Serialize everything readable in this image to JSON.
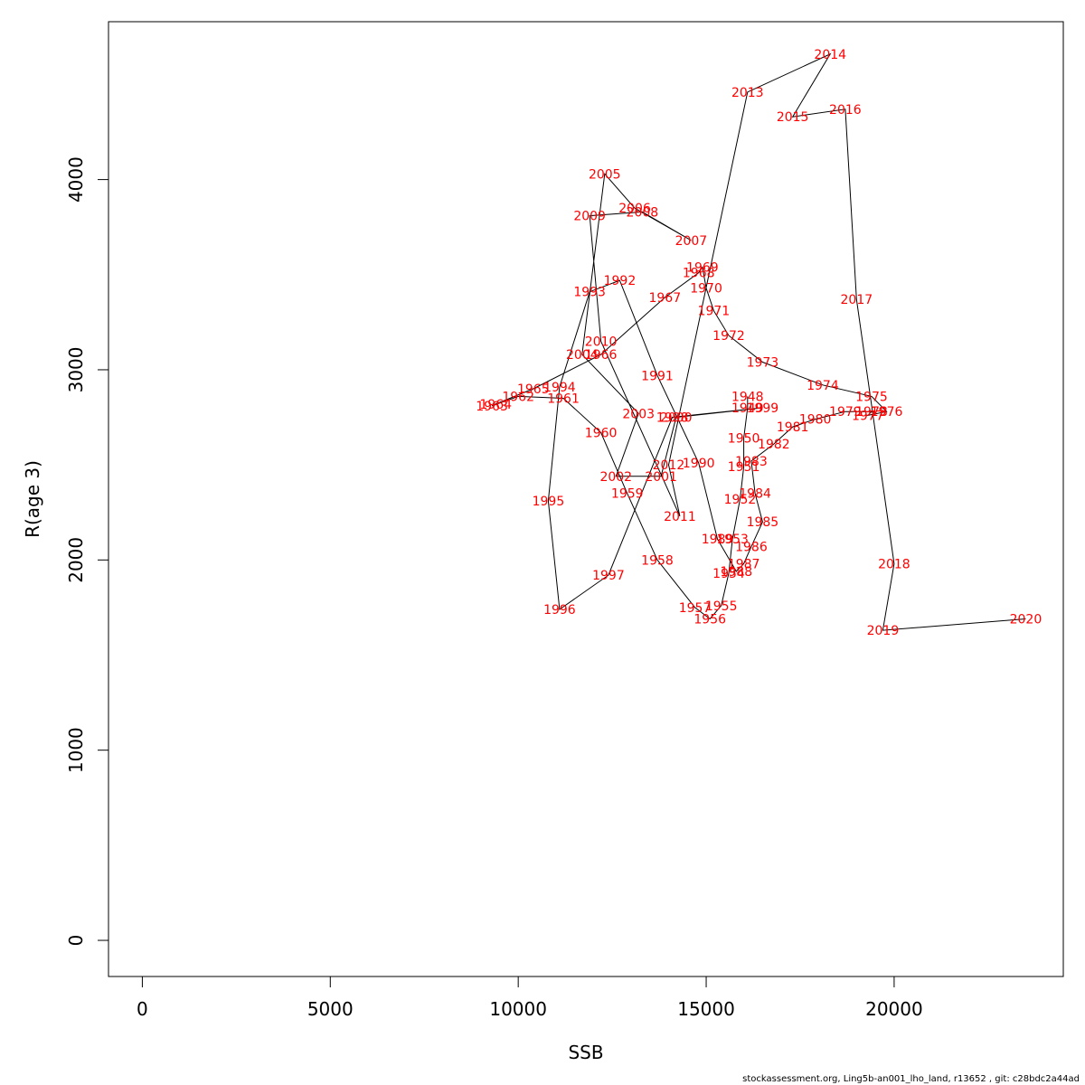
{
  "chart_data": {
    "type": "line",
    "xlabel": "SSB",
    "ylabel": "R(age 3)",
    "xlim": [
      -900,
      24500
    ],
    "ylim": [
      -190,
      4830
    ],
    "xticks": [
      0,
      5000,
      10000,
      15000,
      20000
    ],
    "yticks": [
      0,
      1000,
      2000,
      3000,
      4000
    ],
    "xtick_labels": [
      "0",
      "5000",
      "10000",
      "15000",
      "20000"
    ],
    "ytick_labels": [
      "0",
      "1000",
      "2000",
      "3000",
      "4000"
    ],
    "point_label_color": "#ff0000",
    "line_color": "#000000",
    "series": [
      {
        "points": [
          {
            "year": "1948",
            "x": 16100,
            "y": 2860
          },
          {
            "year": "1949",
            "x": 16100,
            "y": 2800
          },
          {
            "year": "1950",
            "x": 16000,
            "y": 2640
          },
          {
            "year": "1951",
            "x": 16000,
            "y": 2490
          },
          {
            "year": "1952",
            "x": 15900,
            "y": 2320
          },
          {
            "year": "1953",
            "x": 15700,
            "y": 2110
          },
          {
            "year": "1954",
            "x": 15600,
            "y": 1930
          },
          {
            "year": "1955",
            "x": 15400,
            "y": 1760
          },
          {
            "year": "1956",
            "x": 15100,
            "y": 1690
          },
          {
            "year": "1957",
            "x": 14700,
            "y": 1750
          },
          {
            "year": "1958",
            "x": 13700,
            "y": 2000
          },
          {
            "year": "1959",
            "x": 12900,
            "y": 2350
          },
          {
            "year": "1960",
            "x": 12200,
            "y": 2670
          },
          {
            "year": "1961",
            "x": 11200,
            "y": 2850
          },
          {
            "year": "1962",
            "x": 10000,
            "y": 2860
          },
          {
            "year": "1963",
            "x": 9300,
            "y": 2810
          },
          {
            "year": "1964",
            "x": 9400,
            "y": 2820
          },
          {
            "year": "1965",
            "x": 10400,
            "y": 2900
          },
          {
            "year": "1966",
            "x": 12200,
            "y": 3080
          },
          {
            "year": "1967",
            "x": 13900,
            "y": 3380
          },
          {
            "year": "1968",
            "x": 14800,
            "y": 3510
          },
          {
            "year": "1969",
            "x": 14900,
            "y": 3540
          },
          {
            "year": "1970",
            "x": 15000,
            "y": 3430
          },
          {
            "year": "1971",
            "x": 15200,
            "y": 3310
          },
          {
            "year": "1972",
            "x": 15600,
            "y": 3180
          },
          {
            "year": "1973",
            "x": 16500,
            "y": 3040
          },
          {
            "year": "1974",
            "x": 18100,
            "y": 2920
          },
          {
            "year": "1975",
            "x": 19400,
            "y": 2860
          },
          {
            "year": "1976",
            "x": 19800,
            "y": 2780
          },
          {
            "year": "1977",
            "x": 19300,
            "y": 2760
          },
          {
            "year": "1978",
            "x": 19400,
            "y": 2780
          },
          {
            "year": "1979",
            "x": 18700,
            "y": 2780
          },
          {
            "year": "1980",
            "x": 17900,
            "y": 2740
          },
          {
            "year": "1981",
            "x": 17300,
            "y": 2700
          },
          {
            "year": "1982",
            "x": 16800,
            "y": 2610
          },
          {
            "year": "1983",
            "x": 16200,
            "y": 2520
          },
          {
            "year": "1984",
            "x": 16300,
            "y": 2350
          },
          {
            "year": "1985",
            "x": 16500,
            "y": 2200
          },
          {
            "year": "1986",
            "x": 16200,
            "y": 2070
          },
          {
            "year": "1987",
            "x": 16000,
            "y": 1980
          },
          {
            "year": "1988",
            "x": 15800,
            "y": 1940
          },
          {
            "year": "1989",
            "x": 15300,
            "y": 2110
          },
          {
            "year": "1990",
            "x": 14800,
            "y": 2510
          },
          {
            "year": "1991",
            "x": 13700,
            "y": 2970
          },
          {
            "year": "1992",
            "x": 12700,
            "y": 3470
          },
          {
            "year": "1993",
            "x": 11900,
            "y": 3410
          },
          {
            "year": "1994",
            "x": 11100,
            "y": 2910
          },
          {
            "year": "1995",
            "x": 10800,
            "y": 2310
          },
          {
            "year": "1996",
            "x": 11100,
            "y": 1740
          },
          {
            "year": "1997",
            "x": 12400,
            "y": 1920
          },
          {
            "year": "1998",
            "x": 14100,
            "y": 2750
          },
          {
            "year": "1999",
            "x": 16500,
            "y": 2800
          },
          {
            "year": "2000",
            "x": 14200,
            "y": 2750
          },
          {
            "year": "2001",
            "x": 13800,
            "y": 2440
          },
          {
            "year": "2002",
            "x": 12600,
            "y": 2440
          },
          {
            "year": "2003",
            "x": 13200,
            "y": 2770
          },
          {
            "year": "2004",
            "x": 11700,
            "y": 3080
          },
          {
            "year": "2005",
            "x": 12300,
            "y": 4030
          },
          {
            "year": "2006",
            "x": 13100,
            "y": 3850
          },
          {
            "year": "2007",
            "x": 14600,
            "y": 3680
          },
          {
            "year": "2008",
            "x": 13300,
            "y": 3830
          },
          {
            "year": "2009",
            "x": 11900,
            "y": 3810
          },
          {
            "year": "2010",
            "x": 12200,
            "y": 3150
          },
          {
            "year": "2011",
            "x": 14300,
            "y": 2230
          },
          {
            "year": "2012",
            "x": 14000,
            "y": 2500
          },
          {
            "year": "2013",
            "x": 16100,
            "y": 4460
          },
          {
            "year": "2014",
            "x": 18300,
            "y": 4660
          },
          {
            "year": "2015",
            "x": 17300,
            "y": 4330
          },
          {
            "year": "2016",
            "x": 18700,
            "y": 4370
          },
          {
            "year": "2017",
            "x": 19000,
            "y": 3370
          },
          {
            "year": "2018",
            "x": 20000,
            "y": 1980
          },
          {
            "year": "2019",
            "x": 19700,
            "y": 1630
          },
          {
            "year": "2020",
            "x": 23500,
            "y": 1690
          }
        ]
      }
    ]
  },
  "footer": {
    "text": "stockassessment.org, Ling5b-an001_lho_land, r13652 , git: c28bdc2a44ad"
  }
}
